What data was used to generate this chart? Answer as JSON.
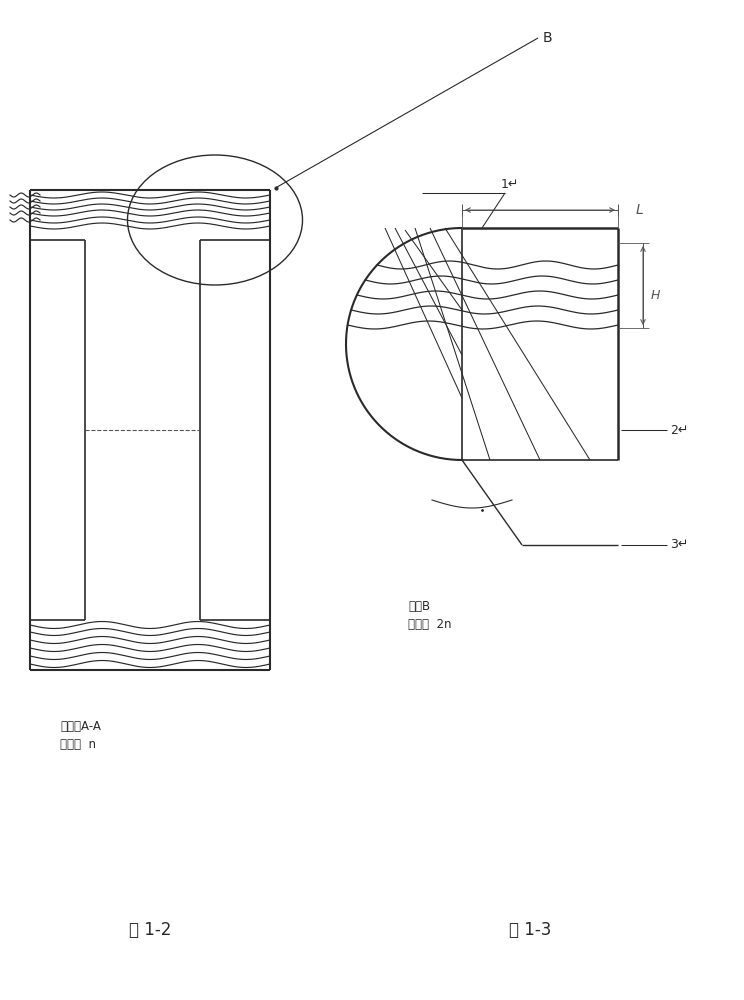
{
  "bg_color": "#ffffff",
  "line_color": "#2a2a2a",
  "dim_color": "#555555",
  "fig_width": 7.44,
  "fig_height": 10.0,
  "fig1_label": "图 1-2",
  "fig2_label": "图 1-3",
  "caption1_line1": "剖视图A-A",
  "caption1_line2": "缩放：  n",
  "caption2_line1": "详图B",
  "caption2_line2": "缩放：  2n",
  "label_B": "B",
  "label_1": "1↵",
  "label_2": "2↵",
  "label_3": "3↵",
  "label_L": "L",
  "label_H": "H"
}
